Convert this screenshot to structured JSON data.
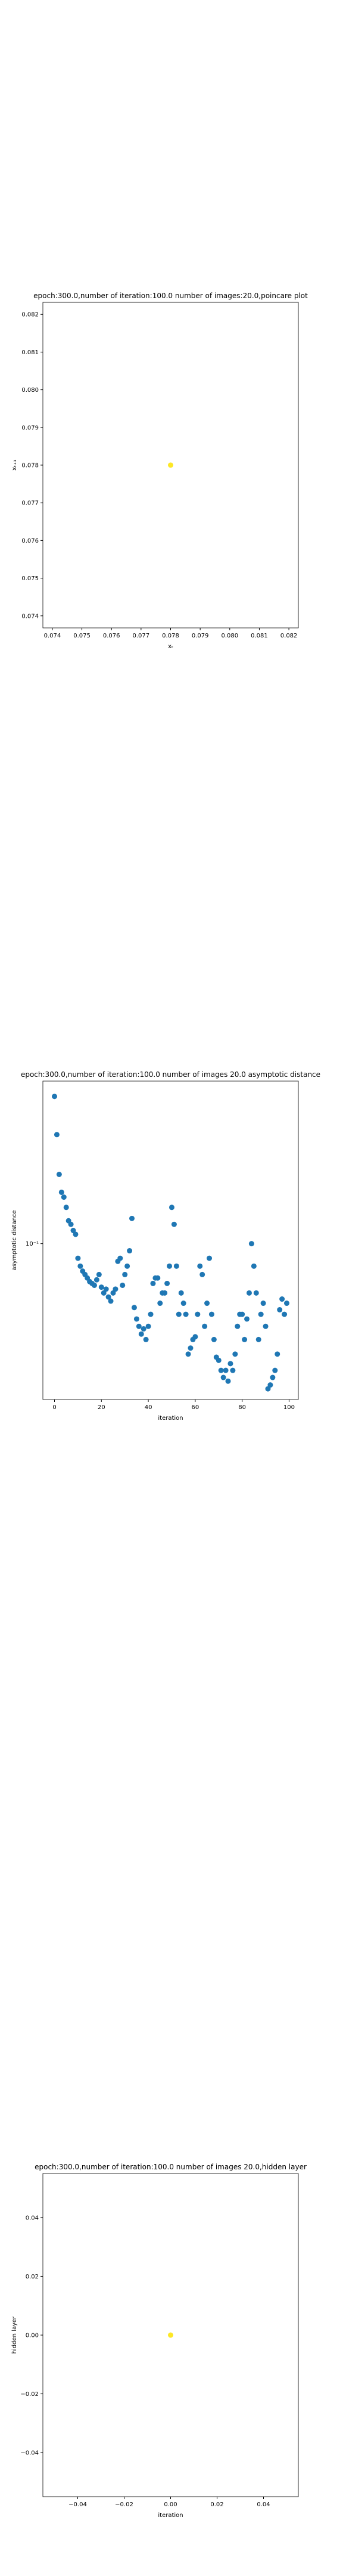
{
  "chart_data": [
    {
      "type": "scatter",
      "title": "epoch:300.0,number of iteration:100.0 number of images:20.0,poincare plot",
      "x_label": "xₜ",
      "y_label": "xₜ₊₁",
      "series": [
        {
          "color": "#fde725",
          "x": [
            0.078
          ],
          "values": [
            0.078
          ]
        }
      ],
      "xlim": [
        0.07368,
        0.08232
      ],
      "ylim": [
        0.07368,
        0.08232
      ],
      "xticks": [
        {
          "value": 0.074,
          "label": "0.074"
        },
        {
          "value": 0.075,
          "label": "0.075"
        },
        {
          "value": 0.076,
          "label": "0.076"
        },
        {
          "value": 0.077,
          "label": "0.077"
        },
        {
          "value": 0.078,
          "label": "0.078"
        },
        {
          "value": 0.079,
          "label": "0.079"
        },
        {
          "value": 0.08,
          "label": "0.080"
        },
        {
          "value": 0.081,
          "label": "0.081"
        },
        {
          "value": 0.082,
          "label": "0.082"
        }
      ],
      "yticks": [
        {
          "value": 0.074,
          "label": "0.074"
        },
        {
          "value": 0.075,
          "label": "0.075"
        },
        {
          "value": 0.076,
          "label": "0.076"
        },
        {
          "value": 0.077,
          "label": "0.077"
        },
        {
          "value": 0.078,
          "label": "0.078"
        },
        {
          "value": 0.079,
          "label": "0.079"
        },
        {
          "value": 0.08,
          "label": "0.080"
        },
        {
          "value": 0.081,
          "label": "0.081"
        },
        {
          "value": 0.082,
          "label": "0.082"
        }
      ]
    },
    {
      "type": "scatter",
      "title": "epoch:300.0,number of iteration:100.0  number of images 20.0 asymptotic distance",
      "x_label": "iteration",
      "y_label": "asymptotic distance",
      "y_log": true,
      "series": [
        {
          "color": "#1f77b4",
          "x": [
            0,
            1,
            2,
            3,
            4,
            5,
            6,
            7,
            8,
            9,
            10,
            11,
            12,
            13,
            14,
            15,
            16,
            17,
            18,
            19,
            20,
            21,
            22,
            23,
            24,
            25,
            26,
            27,
            28,
            29,
            30,
            31,
            32,
            33,
            34,
            35,
            36,
            37,
            38,
            39,
            40,
            41,
            42,
            43,
            44,
            45,
            46,
            47,
            48,
            49,
            50,
            51,
            52,
            53,
            54,
            55,
            56,
            57,
            58,
            59,
            60,
            61,
            62,
            63,
            64,
            65,
            66,
            67,
            68,
            69,
            70,
            71,
            72,
            73,
            74,
            75,
            76,
            77,
            78,
            79,
            80,
            81,
            82,
            83,
            84,
            85,
            86,
            87,
            88,
            89,
            90,
            91,
            92,
            93,
            94,
            95,
            96,
            97,
            98,
            99
          ],
          "values": [
            0.29,
            0.22,
            0.165,
            0.145,
            0.14,
            0.13,
            0.118,
            0.115,
            0.11,
            0.107,
            0.09,
            0.085,
            0.082,
            0.08,
            0.078,
            0.076,
            0.075,
            0.074,
            0.077,
            0.08,
            0.073,
            0.07,
            0.072,
            0.068,
            0.066,
            0.07,
            0.072,
            0.088,
            0.09,
            0.074,
            0.08,
            0.085,
            0.095,
            0.12,
            0.063,
            0.058,
            0.055,
            0.052,
            0.054,
            0.05,
            0.055,
            0.06,
            0.075,
            0.078,
            0.078,
            0.065,
            0.07,
            0.07,
            0.075,
            0.085,
            0.13,
            0.115,
            0.085,
            0.06,
            0.07,
            0.065,
            0.06,
            0.045,
            0.047,
            0.05,
            0.051,
            0.06,
            0.085,
            0.08,
            0.055,
            0.065,
            0.09,
            0.06,
            0.05,
            0.044,
            0.043,
            0.04,
            0.038,
            0.04,
            0.037,
            0.042,
            0.04,
            0.045,
            0.055,
            0.06,
            0.06,
            0.05,
            0.058,
            0.07,
            0.1,
            0.085,
            0.07,
            0.05,
            0.06,
            0.065,
            0.055,
            0.035,
            0.036,
            0.038,
            0.04,
            0.045,
            0.062,
            0.067,
            0.06,
            0.065
          ]
        }
      ],
      "xlim": [
        -4.95,
        103.95
      ],
      "ylim": [
        0.0324,
        0.324
      ],
      "xticks": [
        0,
        20,
        40,
        60,
        80,
        100
      ],
      "yticks": [
        {
          "value": 0.1,
          "label": "10⁻¹"
        }
      ]
    },
    {
      "type": "scatter",
      "title": "epoch:300.0,number of iteration:100.0  number of images 20.0,hidden layer",
      "x_label": "iteration",
      "y_label": "hidden layer",
      "series": [
        {
          "color": "#fde725",
          "x": [
            0
          ],
          "values": [
            0
          ]
        }
      ],
      "xlim": [
        -0.055,
        0.055
      ],
      "ylim": [
        -0.055,
        0.055
      ],
      "xticks": [
        {
          "value": -0.04,
          "label": "−0.04"
        },
        {
          "value": -0.02,
          "label": "−0.02"
        },
        {
          "value": 0,
          "label": "0.00"
        },
        {
          "value": 0.02,
          "label": "0.02"
        },
        {
          "value": 0.04,
          "label": "0.04"
        }
      ],
      "yticks": [
        {
          "value": -0.04,
          "label": "−0.04"
        },
        {
          "value": -0.02,
          "label": "−0.02"
        },
        {
          "value": 0,
          "label": "0.00"
        },
        {
          "value": 0.02,
          "label": "0.02"
        },
        {
          "value": 0.04,
          "label": "0.04"
        }
      ]
    }
  ]
}
